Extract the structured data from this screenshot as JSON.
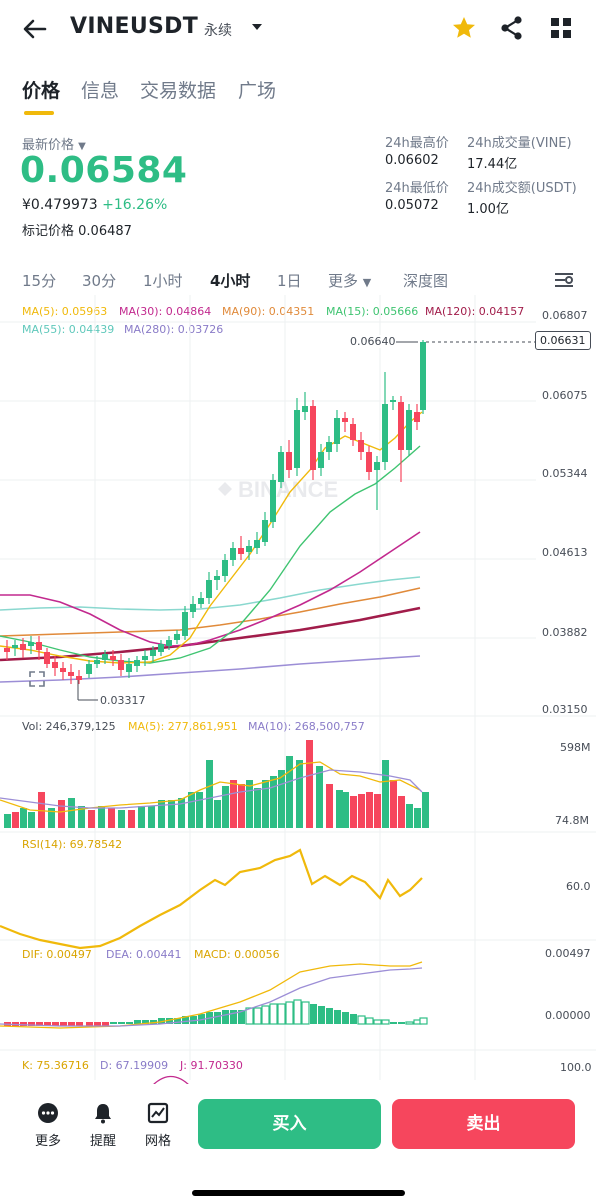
{
  "header": {
    "pair": "VINEUSDT",
    "contract_type": "永续"
  },
  "tabs": [
    "价格",
    "信息",
    "交易数据",
    "广场"
  ],
  "price": {
    "last_label": "最新价格",
    "last": "0.06584",
    "cny": "¥0.479973",
    "change": "+16.26%",
    "mark_label": "标记价格",
    "mark": "0.06487"
  },
  "stats": {
    "high_label": "24h最高价",
    "high": "0.06602",
    "vol_label": "24h成交量(VINE)",
    "vol": "17.44亿",
    "low_label": "24h最低价",
    "low": "0.05072",
    "amount_label": "24h成交额(USDT)",
    "amount": "1.00亿"
  },
  "intervals": [
    "15分",
    "30分",
    "1小时",
    "4小时",
    "1日",
    "更多",
    "深度图"
  ],
  "active_interval": "4小时",
  "ma_legend": {
    "ma5": "MA(5): 0.05963",
    "ma30": "MA(30): 0.04864",
    "ma90": "MA(90): 0.04351",
    "ma15": "MA(15): 0.05666",
    "ma120": "MA(120): 0.04157",
    "ma55": "MA(55): 0.04439",
    "ma280": "MA(280): 0.03726"
  },
  "colors": {
    "up": "#2ebd85",
    "down": "#f6465d",
    "accent": "#f0b90b",
    "ma5": "#f0b90b",
    "ma15": "#3fc471",
    "ma30": "#c2298e",
    "ma55": "#8ad8cf",
    "ma90": "#e08a3a",
    "ma120": "#a11c4a",
    "ma280": "#9c8ed6"
  },
  "price_axis": [
    "0.06807",
    "0.06075",
    "0.05344",
    "0.04613",
    "0.03882",
    "0.03150"
  ],
  "price_marks": {
    "high_mark": "0.06640",
    "current": "0.06631",
    "low_mark": "0.03317"
  },
  "volume": {
    "vol": "Vol: 246,379,125",
    "ma5": "MA(5): 277,861,951",
    "ma10": "MA(10): 268,500,757",
    "axis_top": "598M",
    "axis_bottom": "74.8M"
  },
  "rsi": {
    "label": "RSI(14): 69.78542",
    "axis": "60.0"
  },
  "macd": {
    "dif": "DIF: 0.00497",
    "dea": "DEA: 0.00441",
    "macd": "MACD: 0.00056",
    "axis_top": "0.00497",
    "axis_mid": "0.00000"
  },
  "kdj": {
    "k": "K: 75.36716",
    "d": "D: 67.19909",
    "j": "J: 91.70330",
    "axis": "100.0"
  },
  "watermark": "BINANCE",
  "bottom_bar": {
    "more": "更多",
    "alert": "提醒",
    "grid": "网格",
    "buy": "买入",
    "sell": "卖出"
  }
}
